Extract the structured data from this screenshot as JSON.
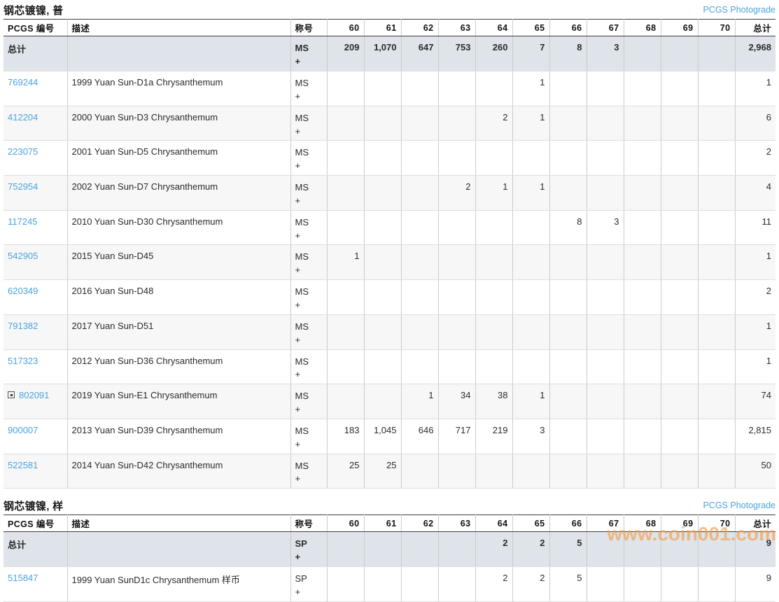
{
  "page": {
    "watermark": "www.coin001.com"
  },
  "colors": {
    "link_blue": "#4aa3df",
    "totals_row_bg": "#dee4e9",
    "stripe_bg": "#f7f7f8",
    "watermark_orange": "#f79a43"
  },
  "columns": {
    "pcgs_number": "PCGS 编号",
    "description": "描述",
    "designation": "称号",
    "grades": [
      "60",
      "61",
      "62",
      "63",
      "64",
      "65",
      "66",
      "67",
      "68",
      "69",
      "70"
    ],
    "total": "总计"
  },
  "tables": [
    {
      "title": "钢芯镀镍, 普",
      "photograde_link": "PCGS Photograde",
      "totals": {
        "label": "总计",
        "designation": "MS\n+",
        "grades": [
          "209",
          "1,070",
          "647",
          "753",
          "260",
          "7",
          "8",
          "3",
          "",
          "",
          ""
        ],
        "total": "2,968"
      },
      "rows": [
        {
          "pcgs_number": "769244",
          "has_expand_icon": false,
          "description": "1999 Yuan Sun-D1a Chrysanthemum",
          "designation": "MS\n+",
          "grades": [
            "",
            "",
            "",
            "",
            "",
            "1",
            "",
            "",
            "",
            "",
            ""
          ],
          "total": "1"
        },
        {
          "pcgs_number": "412204",
          "has_expand_icon": false,
          "description": "2000 Yuan Sun-D3 Chrysanthemum",
          "designation": "MS\n+",
          "grades": [
            "",
            "",
            "",
            "",
            "2",
            "1",
            "",
            "",
            "",
            "",
            ""
          ],
          "total": "6"
        },
        {
          "pcgs_number": "223075",
          "has_expand_icon": false,
          "description": "2001 Yuan Sun-D5 Chrysanthemum",
          "designation": "MS\n+",
          "grades": [
            "",
            "",
            "",
            "",
            "",
            "",
            "",
            "",
            "",
            "",
            ""
          ],
          "total": "2"
        },
        {
          "pcgs_number": "752954",
          "has_expand_icon": false,
          "description": "2002 Yuan Sun-D7 Chrysanthemum",
          "designation": "MS\n+",
          "grades": [
            "",
            "",
            "",
            "2",
            "1",
            "1",
            "",
            "",
            "",
            "",
            ""
          ],
          "total": "4"
        },
        {
          "pcgs_number": "117245",
          "has_expand_icon": false,
          "description": "2010 Yuan Sun-D30 Chrysanthemum",
          "designation": "MS\n+",
          "grades": [
            "",
            "",
            "",
            "",
            "",
            "",
            "8",
            "3",
            "",
            "",
            ""
          ],
          "total": "11"
        },
        {
          "pcgs_number": "542905",
          "has_expand_icon": false,
          "description": "2015 Yuan Sun-D45",
          "designation": "MS\n+",
          "grades": [
            "1",
            "",
            "",
            "",
            "",
            "",
            "",
            "",
            "",
            "",
            ""
          ],
          "total": "1"
        },
        {
          "pcgs_number": "620349",
          "has_expand_icon": false,
          "description": "2016 Yuan Sun-D48",
          "designation": "MS\n+",
          "grades": [
            "",
            "",
            "",
            "",
            "",
            "",
            "",
            "",
            "",
            "",
            ""
          ],
          "total": "2"
        },
        {
          "pcgs_number": "791382",
          "has_expand_icon": false,
          "description": "2017 Yuan Sun-D51",
          "designation": "MS\n+",
          "grades": [
            "",
            "",
            "",
            "",
            "",
            "",
            "",
            "",
            "",
            "",
            ""
          ],
          "total": "1"
        },
        {
          "pcgs_number": "517323",
          "has_expand_icon": false,
          "description": "2012 Yuan Sun-D36 Chrysanthemum",
          "designation": "MS\n+",
          "grades": [
            "",
            "",
            "",
            "",
            "",
            "",
            "",
            "",
            "",
            "",
            ""
          ],
          "total": "1"
        },
        {
          "pcgs_number": "802091",
          "has_expand_icon": true,
          "description": "2019 Yuan Sun-E1 Chrysanthemum",
          "designation": "MS\n+",
          "grades": [
            "",
            "",
            "1",
            "34",
            "38",
            "1",
            "",
            "",
            "",
            "",
            ""
          ],
          "total": "74"
        },
        {
          "pcgs_number": "900007",
          "has_expand_icon": false,
          "description": "2013 Yuan Sun-D39 Chrysanthemum",
          "designation": "MS\n+",
          "grades": [
            "183",
            "1,045",
            "646",
            "717",
            "219",
            "3",
            "",
            "",
            "",
            "",
            ""
          ],
          "total": "2,815"
        },
        {
          "pcgs_number": "522581",
          "has_expand_icon": false,
          "description": "2014 Yuan Sun-D42 Chrysanthemum",
          "designation": "MS\n+",
          "grades": [
            "25",
            "25",
            "",
            "",
            "",
            "",
            "",
            "",
            "",
            "",
            ""
          ],
          "total": "50"
        }
      ]
    },
    {
      "title": "钢芯镀镍, 样",
      "photograde_link": "PCGS Photograde",
      "totals": {
        "label": "总计",
        "designation": "SP\n+",
        "grades": [
          "",
          "",
          "",
          "",
          "2",
          "2",
          "5",
          "",
          "",
          "",
          ""
        ],
        "total": "9"
      },
      "rows": [
        {
          "pcgs_number": "515847",
          "has_expand_icon": false,
          "description": "1999 Yuan SunD1c Chrysanthemum 样币",
          "designation": "SP\n+",
          "grades": [
            "",
            "",
            "",
            "",
            "2",
            "2",
            "5",
            "",
            "",
            "",
            ""
          ],
          "total": "9"
        }
      ]
    }
  ]
}
